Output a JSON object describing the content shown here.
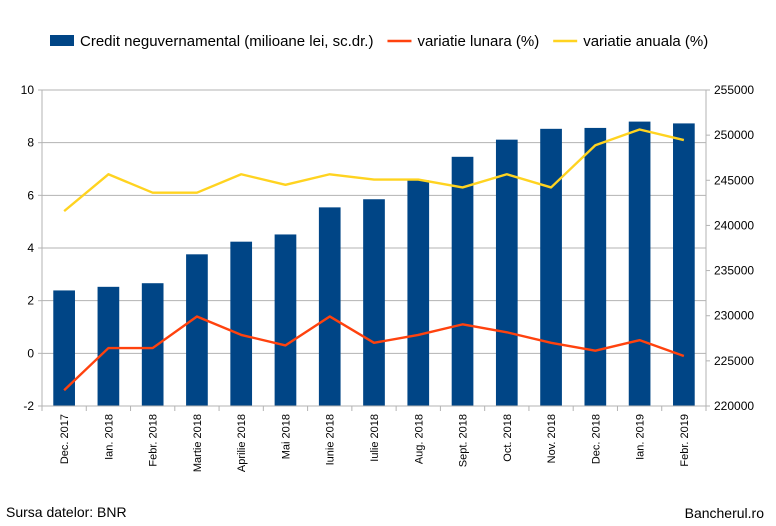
{
  "chart_data": {
    "type": "bar",
    "categories": [
      "Dec. 2017",
      "Ian. 2018",
      "Febr. 2018",
      "Martie 2018",
      "Aprilie 2018",
      "Mai 2018",
      "Iunie 2018",
      "Iulie 2018",
      "Aug. 2018",
      "Sept. 2018",
      "Oct. 2018",
      "Nov. 2018",
      "Dec. 2018",
      "Ian. 2019",
      "Febr. 2019"
    ],
    "series": [
      {
        "name": "Credit neguvernamental (milioane lei, sc.dr.)",
        "type": "bar",
        "axis": "right",
        "color": "#004586",
        "values": [
          232800,
          233200,
          233600,
          236800,
          238200,
          239000,
          242000,
          242900,
          245000,
          247600,
          249500,
          250700,
          250800,
          251500,
          251300
        ]
      },
      {
        "name": "variatie lunara (%)",
        "type": "line",
        "axis": "left",
        "color": "#ff420e",
        "values": [
          -1.4,
          0.2,
          0.2,
          1.4,
          0.7,
          0.3,
          1.4,
          0.4,
          0.7,
          1.1,
          0.8,
          0.4,
          0.1,
          0.5,
          -0.1
        ]
      },
      {
        "name": "variatie anuala (%)",
        "type": "line",
        "axis": "left",
        "color": "#ffd320",
        "values": [
          5.4,
          6.8,
          6.1,
          6.1,
          6.8,
          6.4,
          6.8,
          6.6,
          6.6,
          6.3,
          6.8,
          6.3,
          7.9,
          8.5,
          8.1
        ]
      }
    ],
    "y_left": {
      "min": -2,
      "max": 10,
      "ticks": [
        10,
        8,
        6,
        4,
        2,
        0,
        -2
      ]
    },
    "y_right": {
      "min": 220000,
      "max": 255000,
      "ticks": [
        255000,
        250000,
        245000,
        240000,
        235000,
        230000,
        225000,
        220000
      ]
    },
    "grid": true,
    "legend_position": "top"
  },
  "footer": {
    "source": "Sursa datelor: BNR",
    "brand": "Bancherul.ro"
  }
}
